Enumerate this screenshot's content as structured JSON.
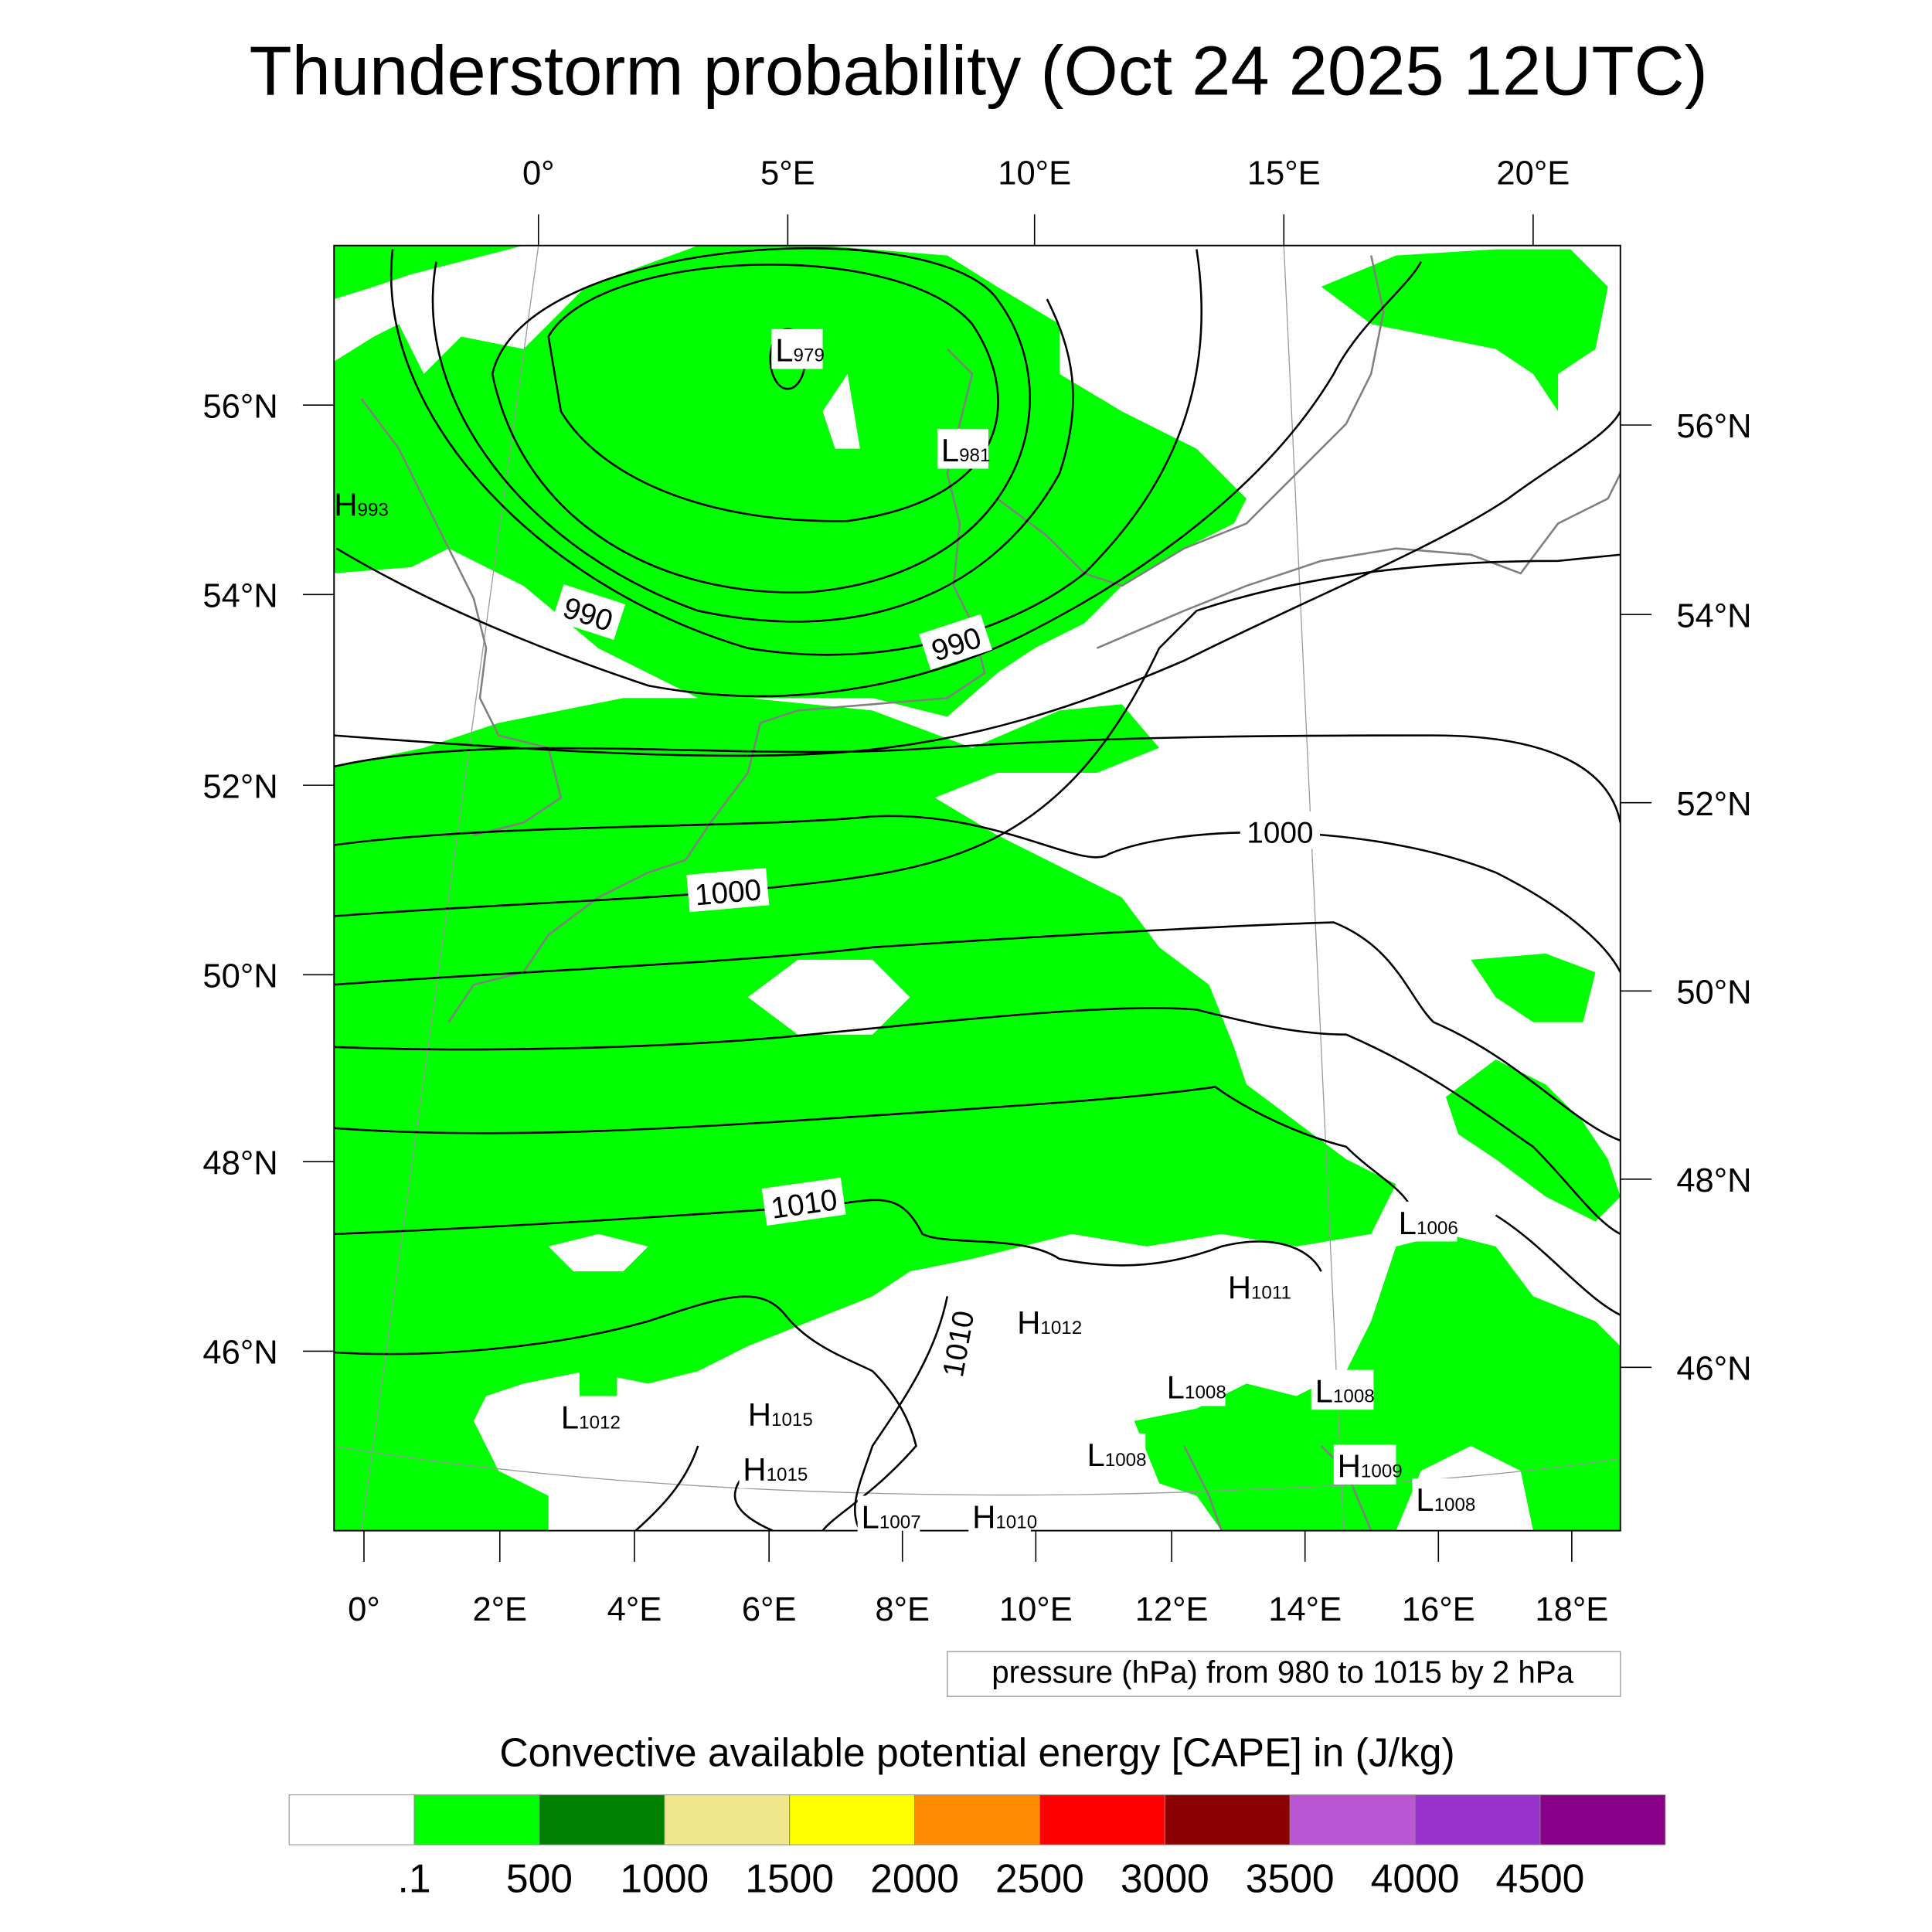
{
  "title": "Thunderstorm probability (Oct 24 2025 12UTC)",
  "axes": {
    "top": [
      "0°",
      "5°E",
      "10°E",
      "15°E",
      "20°E"
    ],
    "left": [
      "56°N",
      "54°N",
      "52°N",
      "50°N",
      "48°N",
      "46°N"
    ],
    "right": [
      "56°N",
      "54°N",
      "52°N",
      "50°N",
      "48°N",
      "46°N"
    ],
    "bottom": [
      "0°",
      "2°E",
      "4°E",
      "6°E",
      "8°E",
      "10°E",
      "12°E",
      "14°E",
      "16°E",
      "18°E"
    ]
  },
  "contour_labels": [
    "990",
    "990",
    "1000",
    "1000",
    "1010",
    "1010"
  ],
  "pressure_centers": [
    {
      "type": "L",
      "value": "979"
    },
    {
      "type": "L",
      "value": "981"
    },
    {
      "type": "H",
      "value": "993"
    },
    {
      "type": "L",
      "value": "1006"
    },
    {
      "type": "H",
      "value": "1011"
    },
    {
      "type": "H",
      "value": "1012"
    },
    {
      "type": "L",
      "value": "1008"
    },
    {
      "type": "L",
      "value": "1008"
    },
    {
      "type": "L",
      "value": "1012"
    },
    {
      "type": "H",
      "value": "1015"
    },
    {
      "type": "H",
      "value": "1015"
    },
    {
      "type": "L",
      "value": "1008"
    },
    {
      "type": "H",
      "value": "1009"
    },
    {
      "type": "L",
      "value": "1008"
    },
    {
      "type": "L",
      "value": "1007"
    },
    {
      "type": "H",
      "value": "1010"
    }
  ],
  "contour_info": "pressure (hPa) from 980 to 1015 by 2 hPa",
  "colorbar": {
    "title": "Convective available potential energy [CAPE] in (J/kg)",
    "colors": [
      "#ffffff",
      "#00ff00",
      "#008000",
      "#f0e68c",
      "#ffff00",
      "#ff8c00",
      "#ff0000",
      "#8b0000",
      "#ba55d3",
      "#9932cc",
      "#8b008b"
    ],
    "labels": [
      ".1",
      "500",
      "1000",
      "1500",
      "2000",
      "2500",
      "3000",
      "3500",
      "4000",
      "4500"
    ]
  }
}
